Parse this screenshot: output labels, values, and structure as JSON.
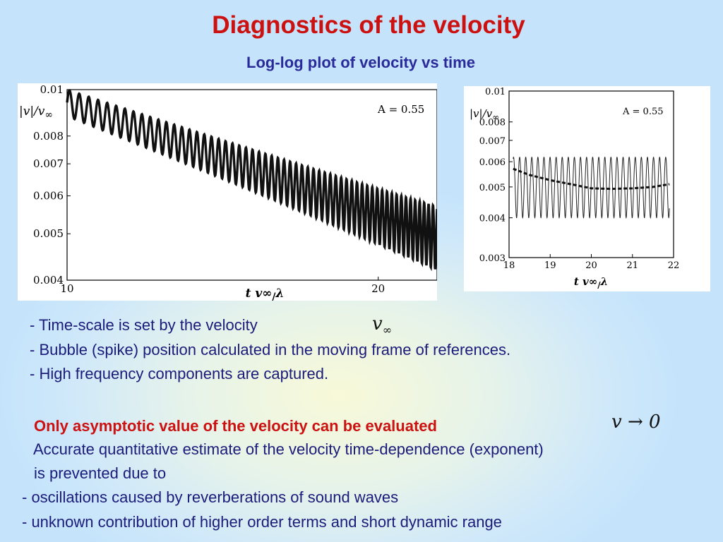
{
  "slide": {
    "title": "Diagnostics of the velocity",
    "subtitle": "Log-log plot of velocity vs time",
    "bullets": [
      "- Time-scale is set by the velocity",
      "- Bubble (spike) position  calculated in the moving frame of references.",
      "- High frequency components are captured."
    ],
    "symbol_vinf": "v",
    "symbol_vinf_sub": "∞",
    "highlight": "Only asymptotic value of the velocity can be evaluated",
    "symbol_limit": "v → 0",
    "para_line1": "Accurate quantitative estimate of the velocity time-dependence (exponent)",
    "para_line2": "is prevented due to",
    "reasons": [
      "- oscillations caused by reverberations of sound waves",
      "- unknown contribution of higher order terms and short dynamic range"
    ]
  },
  "chart_data": [
    {
      "type": "line",
      "annotation": "A = 0.55",
      "ylabel": "|v|/v∞",
      "xlabel": "t v∞/λ",
      "xlim": [
        10,
        22.8
      ],
      "ylim": [
        0.004,
        0.01
      ],
      "yscale": "log",
      "xscale": "log",
      "xticks": [
        "10",
        "20"
      ],
      "yticks": [
        "0.01",
        "0.008",
        "0.007",
        "0.006",
        "0.005",
        "0.004"
      ],
      "series": [
        {
          "style": "solid-oscillating",
          "trend_x": [
            10,
            22.8
          ],
          "trend_y": [
            0.0094,
            0.00495
          ],
          "amplitude_start": 0.0006,
          "amplitude_end": 0.00075,
          "period": 0.22
        }
      ]
    },
    {
      "type": "line",
      "annotation": "A = 0.55",
      "ylabel": "|v|/v∞",
      "xlabel": "t v∞/λ",
      "xlim": [
        18,
        22
      ],
      "ylim": [
        0.003,
        0.01
      ],
      "yscale": "log",
      "xscale": "linear",
      "xticks": [
        "18",
        "19",
        "20",
        "21",
        "22"
      ],
      "yticks": [
        "0.01",
        "0.008",
        "0.007",
        "0.006",
        "0.005",
        "0.004",
        "0.003"
      ],
      "series": [
        {
          "style": "thin-oscillating",
          "mean": 0.0051,
          "amplitude": 0.0011,
          "period": 0.148,
          "x": [
            18.1,
            21.9
          ]
        },
        {
          "style": "dashed-trend",
          "x": [
            18.1,
            18.5,
            19,
            19.5,
            20,
            20.5,
            21,
            21.5,
            21.9
          ],
          "y": [
            0.0057,
            0.00545,
            0.00525,
            0.0051,
            0.00495,
            0.00493,
            0.00495,
            0.005,
            0.0051
          ]
        }
      ]
    }
  ]
}
